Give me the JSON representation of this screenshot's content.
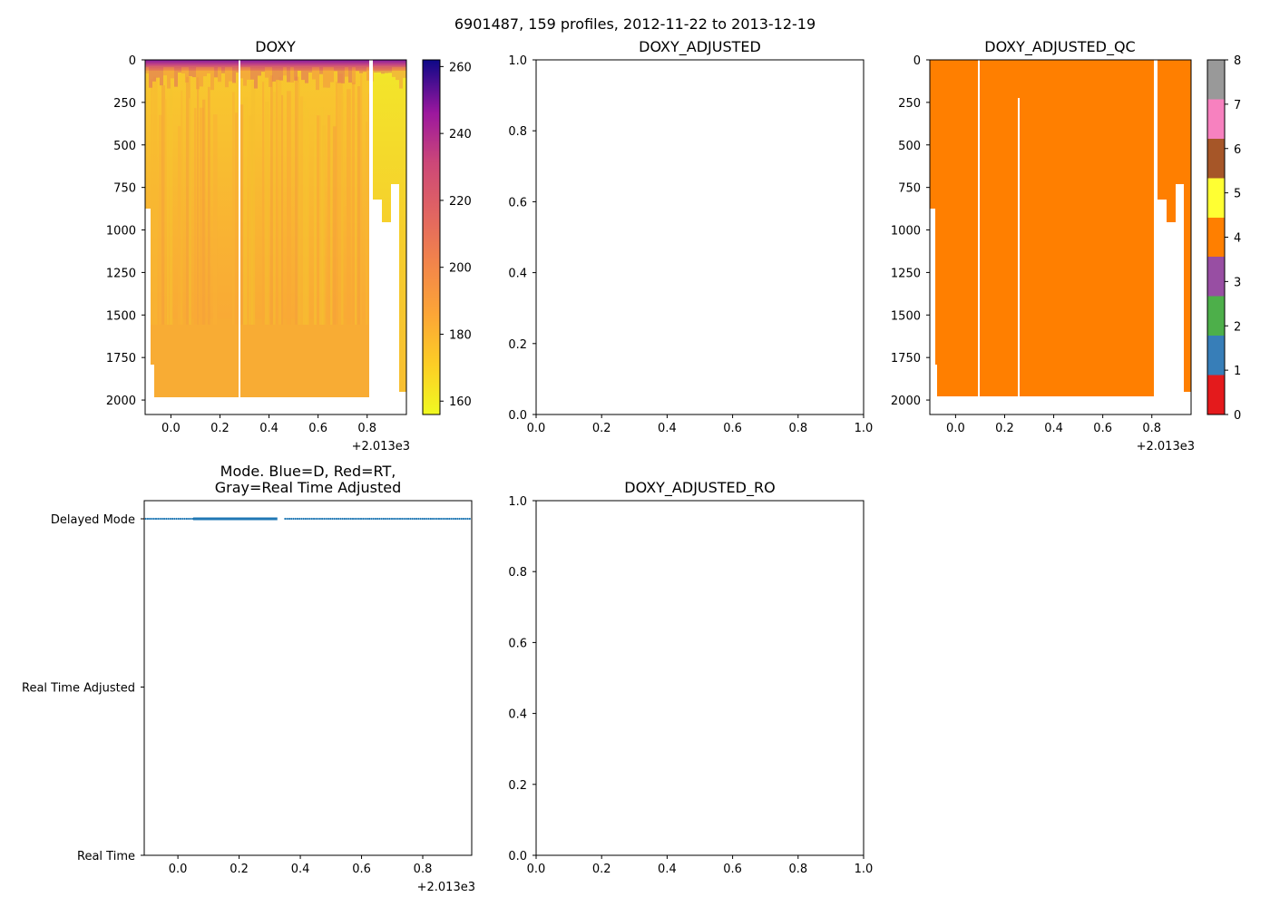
{
  "figure_title": "6901487, 159 profiles, 2012-11-22 to 2013-12-19",
  "colors": {
    "doxy_low": "#f4ec27",
    "doxy_mid": "#f9a734",
    "doxy_high": "#6a00a8",
    "qc_fill": "#ff7f00",
    "mode_line": "#1f77b4"
  },
  "chart_data": [
    {
      "id": "doxy",
      "type": "heatmap",
      "title": "DOXY",
      "xlim": [
        -0.105,
        0.96
      ],
      "x_ticks": [
        0.0,
        0.2,
        0.4,
        0.6,
        0.8
      ],
      "x_tick_labels": [
        "0.0",
        "0.2",
        "0.4",
        "0.6",
        "0.8"
      ],
      "x_offset_label": "+2.013e3",
      "ylim": [
        2085,
        0
      ],
      "y_ticks": [
        0,
        250,
        500,
        750,
        1000,
        1250,
        1500,
        1750,
        2000
      ],
      "y_tick_labels": [
        "0",
        "250",
        "500",
        "750",
        "1000",
        "1250",
        "1500",
        "1750",
        "2000"
      ],
      "colorbar": {
        "range": [
          156,
          262
        ],
        "ticks": [
          160,
          180,
          200,
          220,
          240,
          260
        ],
        "tick_labels": [
          "160",
          "180",
          "200",
          "220",
          "240",
          "260"
        ],
        "colormap": "plasma_r"
      },
      "profile_bottom_depth": 1980,
      "surface_layer_depth": 60,
      "gaps_x": [
        0.27,
        0.82
      ]
    },
    {
      "id": "doxy_adjusted",
      "type": "scatter",
      "title": "DOXY_ADJUSTED",
      "xlim": [
        0.0,
        1.0
      ],
      "ylim": [
        0.0,
        1.0
      ],
      "x_ticks": [
        0.0,
        0.2,
        0.4,
        0.6,
        0.8,
        1.0
      ],
      "x_tick_labels": [
        "0.0",
        "0.2",
        "0.4",
        "0.6",
        "0.8",
        "1.0"
      ],
      "y_ticks": [
        0.0,
        0.2,
        0.4,
        0.6,
        0.8,
        1.0
      ],
      "y_tick_labels": [
        "0.0",
        "0.2",
        "0.4",
        "0.6",
        "0.8",
        "1.0"
      ],
      "series": []
    },
    {
      "id": "doxy_adjusted_qc",
      "type": "heatmap",
      "title": "DOXY_ADJUSTED_QC",
      "xlim": [
        -0.105,
        0.96
      ],
      "x_ticks": [
        0.0,
        0.2,
        0.4,
        0.6,
        0.8
      ],
      "x_tick_labels": [
        "0.0",
        "0.2",
        "0.4",
        "0.6",
        "0.8"
      ],
      "x_offset_label": "+2.013e3",
      "ylim": [
        2085,
        0
      ],
      "y_ticks": [
        0,
        250,
        500,
        750,
        1000,
        1250,
        1500,
        1750,
        2000
      ],
      "y_tick_labels": [
        "0",
        "250",
        "500",
        "750",
        "1000",
        "1250",
        "1500",
        "1750",
        "2000"
      ],
      "qc_value": 4,
      "colorbar": {
        "range": [
          0,
          8
        ],
        "ticks": [
          0,
          1,
          2,
          3,
          4,
          5,
          6,
          7,
          8
        ],
        "tick_labels": [
          "0",
          "1",
          "2",
          "3",
          "4",
          "5",
          "6",
          "7",
          "8"
        ],
        "bins": [
          {
            "from": 0.0,
            "to": 0.89,
            "color": "#e41a1c"
          },
          {
            "from": 0.89,
            "to": 1.78,
            "color": "#377eb8"
          },
          {
            "from": 1.78,
            "to": 2.67,
            "color": "#4daf4a"
          },
          {
            "from": 2.67,
            "to": 3.56,
            "color": "#984ea3"
          },
          {
            "from": 3.56,
            "to": 4.44,
            "color": "#ff7f00"
          },
          {
            "from": 4.44,
            "to": 5.33,
            "color": "#ffff33"
          },
          {
            "from": 5.33,
            "to": 6.22,
            "color": "#a65628"
          },
          {
            "from": 6.22,
            "to": 7.11,
            "color": "#f781bf"
          },
          {
            "from": 7.11,
            "to": 8.0,
            "color": "#999999"
          }
        ]
      },
      "gaps_x": [
        0.095,
        0.82
      ]
    },
    {
      "id": "mode",
      "type": "scatter",
      "title": "Mode. Blue=D, Red=RT,",
      "title_line2": "Gray=Real Time Adjusted",
      "xlim": [
        -0.11,
        0.96
      ],
      "x_ticks": [
        0.0,
        0.2,
        0.4,
        0.6,
        0.8
      ],
      "x_tick_labels": [
        "0.0",
        "0.2",
        "0.4",
        "0.6",
        "0.8"
      ],
      "x_offset_label": "+2.013e3",
      "ylim": [
        0,
        2
      ],
      "y_ticks": [
        2,
        1,
        0
      ],
      "y_tick_labels": [
        "Delayed Mode",
        "Real Time Adjusted",
        "Real Time"
      ],
      "series": [
        {
          "name": "Delayed",
          "y": 2,
          "x_start": -0.105,
          "x_end": 0.958,
          "step": 0.0067,
          "dense": [
            0.05,
            0.325
          ],
          "gap": [
            0.325,
            0.345
          ]
        }
      ]
    },
    {
      "id": "doxy_adjusted_ro",
      "type": "scatter",
      "title": "DOXY_ADJUSTED_RO",
      "xlim": [
        0.0,
        1.0
      ],
      "ylim": [
        0.0,
        1.0
      ],
      "x_ticks": [
        0.0,
        0.2,
        0.4,
        0.6,
        0.8,
        1.0
      ],
      "x_tick_labels": [
        "0.0",
        "0.2",
        "0.4",
        "0.6",
        "0.8",
        "1.0"
      ],
      "y_ticks": [
        0.0,
        0.2,
        0.4,
        0.6,
        0.8,
        1.0
      ],
      "y_tick_labels": [
        "0.0",
        "0.2",
        "0.4",
        "0.6",
        "0.8",
        "1.0"
      ],
      "series": []
    }
  ]
}
